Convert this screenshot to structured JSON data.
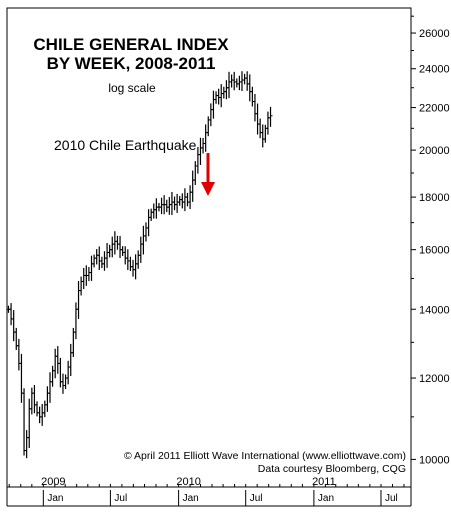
{
  "chart_data": {
    "type": "ohlc",
    "title_lines": [
      "CHILE GENERAL INDEX",
      "BY WEEK, 2008-2011"
    ],
    "subtitle": "log scale",
    "annotation": "2010 Chile Earthquake",
    "y_scale": "log",
    "ylim": [
      9400,
      27500
    ],
    "y_ticks": [
      10000,
      12000,
      14000,
      16000,
      18000,
      20000,
      22000,
      24000,
      26000
    ],
    "y_tick_labels": [
      "10000",
      "12000",
      "14000",
      "16000",
      "18000",
      "20000",
      "22000",
      "24000",
      "26000"
    ],
    "x_month_labels": [
      "Jan",
      "Jul",
      "Jan",
      "Jul",
      "Jan",
      "Jul"
    ],
    "x_year_labels": [
      "2009",
      "2010",
      "2011"
    ],
    "credits": [
      "© April 2011 Elliott Wave International (www.elliottwave.com)",
      "Data courtesy Bloomberg, CQG"
    ],
    "colors": {
      "line": "#000000",
      "arrow": "#e00000",
      "background": "#ffffff"
    },
    "series": [
      {
        "week_start": "2008-09-29",
        "close": [
          14000,
          13700,
          13300,
          12900,
          12400,
          11600,
          10200,
          10500,
          11200,
          11600,
          11300,
          11100,
          11000,
          11100,
          11300,
          11600,
          11900,
          12200,
          12600,
          12400,
          11900,
          11800,
          12000,
          12300,
          12700,
          13300,
          14000,
          14600,
          14900,
          15100,
          15100,
          15200,
          15500,
          15700,
          15800,
          15600,
          15500,
          15700,
          15900,
          16000,
          16200,
          16300,
          16200,
          16000,
          15900,
          15700,
          15600,
          15400,
          15300,
          15500,
          15800,
          16200,
          16500,
          16800,
          17200,
          17400,
          17500,
          17600,
          17600,
          17700,
          17700,
          17600,
          17700,
          17800,
          17700,
          17800,
          17900,
          17800,
          18000,
          17800,
          18200,
          18700,
          19300,
          19800,
          20100,
          20300,
          20800,
          21400,
          21900,
          22400,
          22600,
          22500,
          22700,
          22800,
          23000,
          23300,
          23400,
          23300,
          23200,
          23300,
          23400,
          23500,
          23200,
          22800,
          22300,
          21700,
          21200,
          20800,
          20500,
          21000,
          21500,
          21600
        ]
      }
    ]
  }
}
